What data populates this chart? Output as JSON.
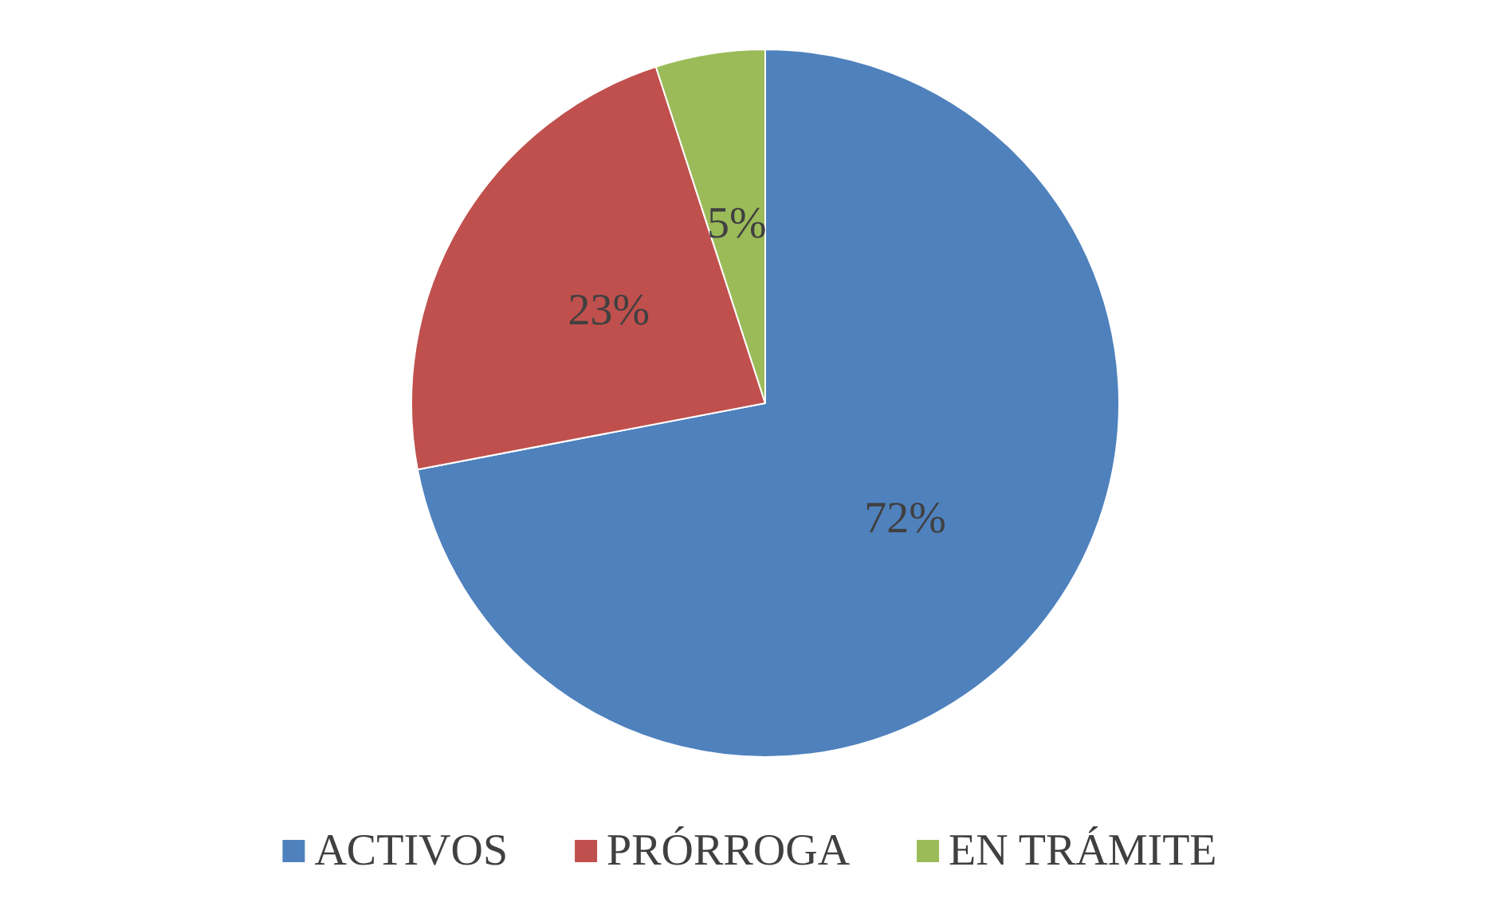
{
  "chart_data": {
    "type": "pie",
    "categories": [
      "ACTIVOS",
      "PRÓRROGA",
      "EN TRÁMITE"
    ],
    "values": [
      72,
      23,
      5
    ],
    "colors": [
      "#4f81bd",
      "#c0504d",
      "#9bbb59"
    ],
    "value_labels": [
      "72%",
      "23%",
      "5%"
    ],
    "legend": "bottom"
  }
}
